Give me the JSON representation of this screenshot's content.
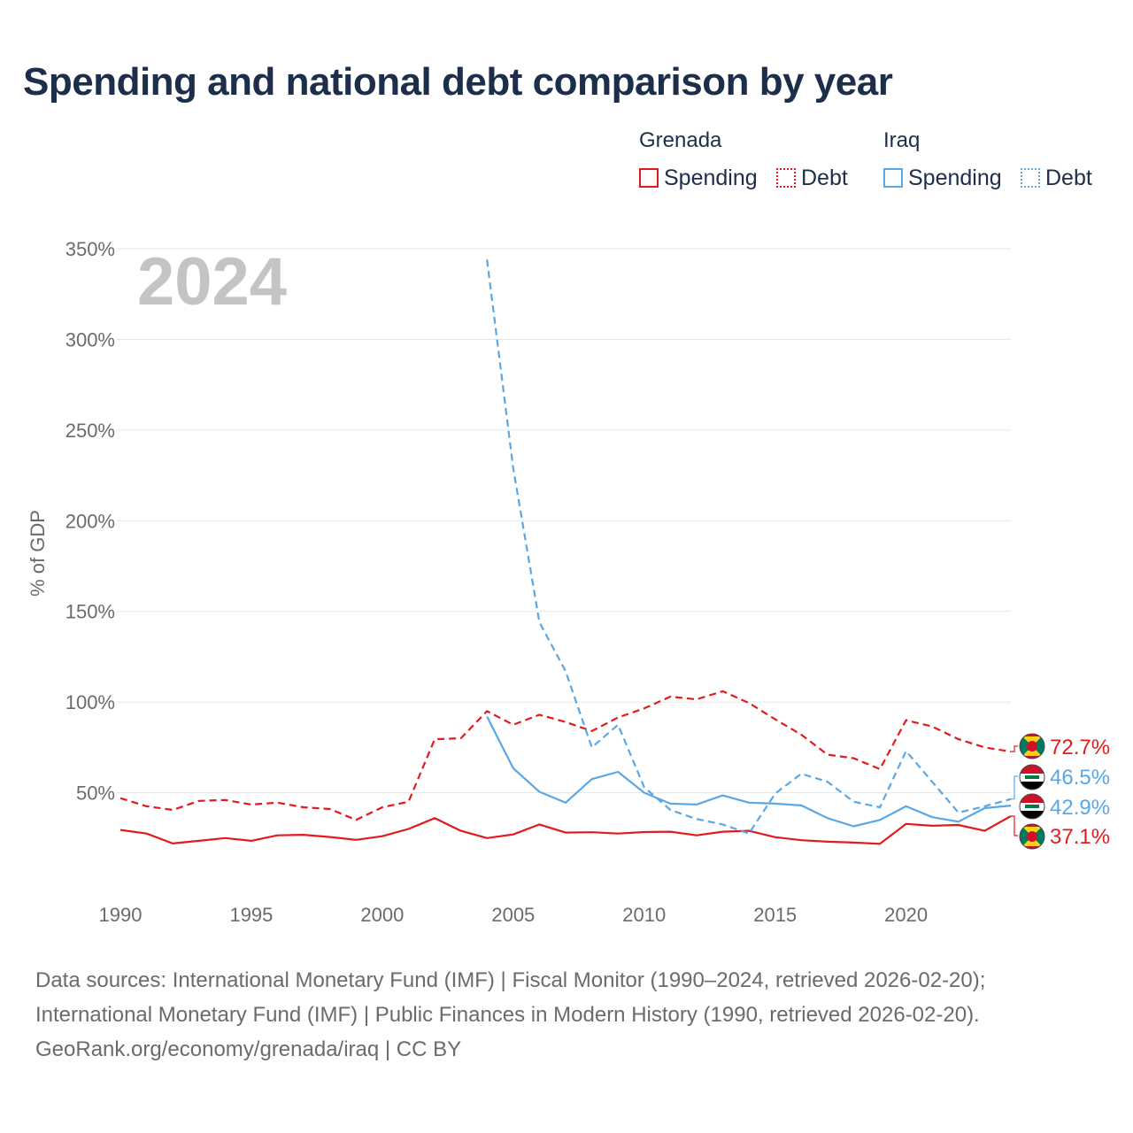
{
  "title": "Spending and national debt comparison by year",
  "legend": {
    "groups": [
      {
        "name": "Grenada",
        "items": [
          "Spending",
          "Debt"
        ]
      },
      {
        "name": "Iraq",
        "items": [
          "Spending",
          "Debt"
        ]
      }
    ]
  },
  "colors": {
    "grenada": "#e31a1c",
    "iraq": "#5aa7e6",
    "title": "#1c2e4a",
    "year_watermark": "#c4c4c4"
  },
  "flags": [
    "grenada-flag-icon",
    "iraq-flag-icon"
  ],
  "chart_data": {
    "type": "line",
    "year_label": "2024",
    "ylabel": "% of GDP",
    "ylim": [
      0,
      350
    ],
    "xlim": [
      1990,
      2024
    ],
    "y_ticks": [
      50,
      100,
      150,
      200,
      250,
      300,
      350
    ],
    "y_tick_labels": [
      "50%",
      "100%",
      "150%",
      "200%",
      "250%",
      "300%",
      "350%"
    ],
    "x_ticks": [
      1990,
      1995,
      2000,
      2005,
      2010,
      2015,
      2020
    ],
    "x_tick_labels": [
      "1990",
      "1995",
      "2000",
      "2005",
      "2010",
      "2015",
      "2020"
    ],
    "grid": true,
    "series": [
      {
        "name": "Grenada Spending",
        "country": "Grenada",
        "metric": "Spending",
        "style": "solid",
        "color": "#e31a1c",
        "x": [
          1990,
          1991,
          1992,
          1993,
          1994,
          1995,
          1996,
          1997,
          1998,
          1999,
          2000,
          2001,
          2002,
          2003,
          2004,
          2005,
          2006,
          2007,
          2008,
          2009,
          2010,
          2011,
          2012,
          2013,
          2014,
          2015,
          2016,
          2017,
          2018,
          2019,
          2020,
          2021,
          2022,
          2023,
          2024
        ],
        "values": [
          29.5,
          27.5,
          22,
          23.5,
          25,
          23.5,
          26.5,
          26.8,
          25.6,
          24,
          26,
          30,
          36,
          29,
          25,
          27,
          32.5,
          28,
          28.2,
          27.5,
          28.3,
          28.5,
          26.5,
          28.5,
          29,
          25.5,
          23.8,
          23,
          22.5,
          21.8,
          32.8,
          31.8,
          32.2,
          29,
          37.1
        ],
        "end_label": "37.1%"
      },
      {
        "name": "Grenada Debt",
        "country": "Grenada",
        "metric": "Debt",
        "style": "dashed",
        "color": "#e31a1c",
        "x": [
          1990,
          1991,
          1992,
          1993,
          1994,
          1995,
          1996,
          1997,
          1998,
          1999,
          2000,
          2001,
          2002,
          2003,
          2004,
          2005,
          2006,
          2007,
          2008,
          2009,
          2010,
          2011,
          2012,
          2013,
          2014,
          2015,
          2016,
          2017,
          2018,
          2019,
          2020,
          2021,
          2022,
          2023,
          2024
        ],
        "values": [
          47,
          42.5,
          40.5,
          45.5,
          46,
          43.5,
          44.5,
          42,
          41,
          35,
          42,
          45,
          79.5,
          80,
          95,
          87.5,
          93,
          89,
          84,
          91.5,
          96.5,
          103,
          101.5,
          106,
          99.5,
          90.5,
          82,
          71,
          69,
          63,
          90,
          86.5,
          79.5,
          75,
          72.7
        ],
        "end_label": "72.7%"
      },
      {
        "name": "Iraq Spending",
        "country": "Iraq",
        "metric": "Spending",
        "style": "solid",
        "color": "#5aa7e6",
        "x": [
          2004,
          2005,
          2006,
          2007,
          2008,
          2009,
          2010,
          2011,
          2012,
          2013,
          2014,
          2015,
          2016,
          2017,
          2018,
          2019,
          2020,
          2021,
          2022,
          2023,
          2024
        ],
        "values": [
          92,
          63.5,
          50.5,
          44.5,
          57.5,
          61.5,
          50,
          44,
          43.5,
          48.5,
          44.5,
          44,
          43,
          36,
          31.5,
          35,
          42.5,
          36.5,
          34,
          41.5,
          42.9
        ],
        "end_label": "42.9%"
      },
      {
        "name": "Iraq Debt",
        "country": "Iraq",
        "metric": "Debt",
        "style": "dashed",
        "color": "#5aa7e6",
        "x": [
          2004,
          2005,
          2006,
          2007,
          2008,
          2009,
          2010,
          2011,
          2012,
          2013,
          2014,
          2015,
          2016,
          2017,
          2018,
          2019,
          2020,
          2021,
          2022,
          2023,
          2024
        ],
        "values": [
          344,
          229,
          144,
          117,
          75,
          87.5,
          53,
          40.5,
          35.5,
          32.5,
          27.5,
          49.5,
          60.5,
          56,
          45,
          42,
          73,
          56,
          39,
          42.5,
          46.5
        ],
        "end_label": "46.5%"
      }
    ]
  },
  "source": {
    "line1": "Data sources: International Monetary Fund (IMF) | Fiscal Monitor (1990–2024, retrieved 2026-02-20);",
    "line2": "International Monetary Fund (IMF) | Public Finances in Modern History (1990, retrieved 2026-02-20).",
    "line3": "GeoRank.org/economy/grenada/iraq | CC BY"
  }
}
